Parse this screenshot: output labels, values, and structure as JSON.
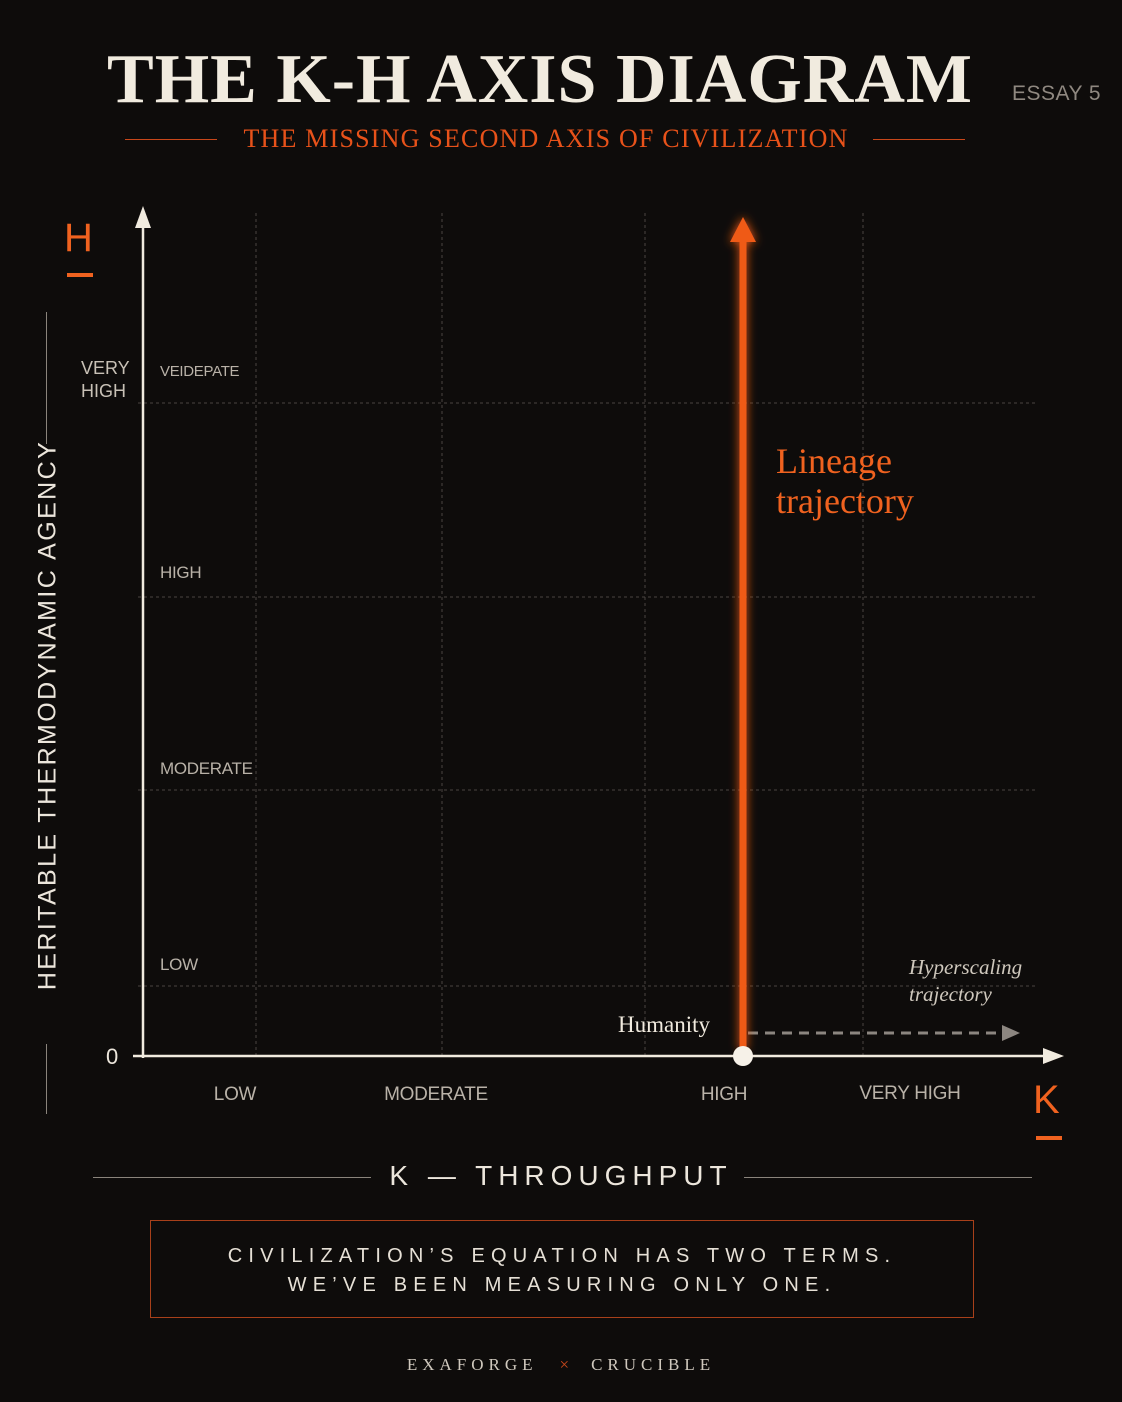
{
  "header": {
    "title": "THE K-H AXIS DIAGRAM",
    "essay": "ESSAY 5",
    "subtitle": "THE MISSING SECOND AXIS OF CIVILIZATION"
  },
  "axes": {
    "y_symbol": "H",
    "x_symbol": "K",
    "y_label": "HERITABLE THERMODYNAMIC AGENCY",
    "x_label": "K — THROUGHPUT",
    "origin": "0",
    "y_ticks": [
      "LOW",
      "MODERATE",
      "HIGH",
      "VEIDEPATE"
    ],
    "y_top_label": "VERY HIGH",
    "x_ticks": [
      "LOW",
      "MODERATE",
      "HIGH",
      "VERY HIGH"
    ]
  },
  "annotations": {
    "lineage_line1": "Lineage",
    "lineage_line2": "trajectory",
    "hyper_line1": "Hyperscaling",
    "hyper_line2": "trajectory",
    "humanity": "Humanity"
  },
  "tagline": {
    "line1": "CIVILIZATION’S EQUATION HAS TWO TERMS.",
    "line2": "WE’VE BEEN MEASURING ONLY ONE."
  },
  "footer": {
    "left": "EXAFORGE",
    "sep": "×",
    "right": "CRUCIBLE"
  },
  "colors": {
    "accent": "#f0621f",
    "background": "#0e0c0b",
    "text": "#ece6dc"
  }
}
